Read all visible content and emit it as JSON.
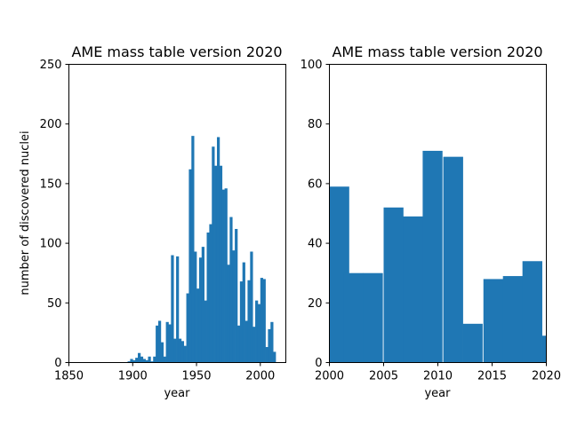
{
  "colors": {
    "bar": "#1f77b4",
    "axes": "#000000",
    "background": "#ffffff"
  },
  "chart_data": [
    {
      "type": "bar",
      "title": "AME mass table version 2020",
      "xlabel": "year",
      "ylabel": "number of discovered nuclei",
      "xlim": [
        1850,
        2020
      ],
      "ylim": [
        0,
        250
      ],
      "xticks": [
        1850,
        1900,
        1950,
        2000
      ],
      "yticks": [
        0,
        50,
        100,
        150,
        200,
        250
      ],
      "bin_width": 2,
      "bins": [
        {
          "x": 1896,
          "y": 1
        },
        {
          "x": 1898,
          "y": 3
        },
        {
          "x": 1900,
          "y": 2
        },
        {
          "x": 1902,
          "y": 4
        },
        {
          "x": 1904,
          "y": 8
        },
        {
          "x": 1906,
          "y": 5
        },
        {
          "x": 1908,
          "y": 3
        },
        {
          "x": 1910,
          "y": 2
        },
        {
          "x": 1912,
          "y": 5
        },
        {
          "x": 1914,
          "y": 1
        },
        {
          "x": 1916,
          "y": 5
        },
        {
          "x": 1918,
          "y": 31
        },
        {
          "x": 1920,
          "y": 35
        },
        {
          "x": 1922,
          "y": 17
        },
        {
          "x": 1924,
          "y": 5
        },
        {
          "x": 1926,
          "y": 34
        },
        {
          "x": 1928,
          "y": 32
        },
        {
          "x": 1930,
          "y": 90
        },
        {
          "x": 1932,
          "y": 20
        },
        {
          "x": 1934,
          "y": 89
        },
        {
          "x": 1936,
          "y": 20
        },
        {
          "x": 1938,
          "y": 18
        },
        {
          "x": 1940,
          "y": 14
        },
        {
          "x": 1942,
          "y": 58
        },
        {
          "x": 1944,
          "y": 162
        },
        {
          "x": 1946,
          "y": 190
        },
        {
          "x": 1948,
          "y": 93
        },
        {
          "x": 1950,
          "y": 62
        },
        {
          "x": 1952,
          "y": 88
        },
        {
          "x": 1954,
          "y": 97
        },
        {
          "x": 1956,
          "y": 52
        },
        {
          "x": 1958,
          "y": 109
        },
        {
          "x": 1960,
          "y": 116
        },
        {
          "x": 1962,
          "y": 181
        },
        {
          "x": 1964,
          "y": 165
        },
        {
          "x": 1966,
          "y": 189
        },
        {
          "x": 1968,
          "y": 165
        },
        {
          "x": 1970,
          "y": 145
        },
        {
          "x": 1972,
          "y": 146
        },
        {
          "x": 1974,
          "y": 82
        },
        {
          "x": 1976,
          "y": 122
        },
        {
          "x": 1978,
          "y": 94
        },
        {
          "x": 1980,
          "y": 112
        },
        {
          "x": 1982,
          "y": 31
        },
        {
          "x": 1984,
          "y": 68
        },
        {
          "x": 1986,
          "y": 84
        },
        {
          "x": 1988,
          "y": 35
        },
        {
          "x": 1990,
          "y": 69
        },
        {
          "x": 1992,
          "y": 93
        },
        {
          "x": 1994,
          "y": 30
        },
        {
          "x": 1996,
          "y": 52
        },
        {
          "x": 1998,
          "y": 49
        },
        {
          "x": 2000,
          "y": 71
        },
        {
          "x": 2002,
          "y": 70
        },
        {
          "x": 2004,
          "y": 13
        },
        {
          "x": 2006,
          "y": 28
        },
        {
          "x": 2008,
          "y": 34
        },
        {
          "x": 2010,
          "y": 9
        }
      ]
    },
    {
      "type": "bar",
      "title": "AME mass table version 2020",
      "xlabel": "year",
      "ylabel": "",
      "xlim": [
        2000,
        2020
      ],
      "ylim": [
        0,
        100
      ],
      "xticks": [
        2000,
        2005,
        2010,
        2015,
        2020
      ],
      "yticks": [
        0,
        20,
        40,
        60,
        80,
        100
      ],
      "bin_width": 1.8,
      "bins": [
        {
          "x": 2000.0,
          "y": 59
        },
        {
          "x": 2001.3,
          "y": 30
        },
        {
          "x": 2003.1,
          "y": 30
        },
        {
          "x": 2005.0,
          "y": 52
        },
        {
          "x": 2006.8,
          "y": 49
        },
        {
          "x": 2008.6,
          "y": 71
        },
        {
          "x": 2010.5,
          "y": 69
        },
        {
          "x": 2012.3,
          "y": 13
        },
        {
          "x": 2014.2,
          "y": 28
        },
        {
          "x": 2016.0,
          "y": 29
        },
        {
          "x": 2017.8,
          "y": 34
        },
        {
          "x": 2019.6,
          "y": 9
        }
      ]
    }
  ]
}
